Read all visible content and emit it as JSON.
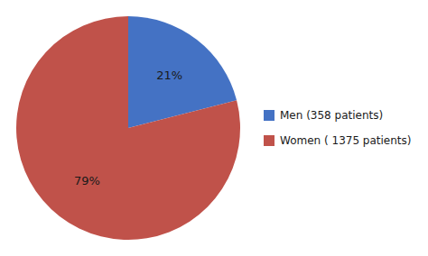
{
  "chart_data": {
    "type": "pie",
    "categories": [
      "Men (358 patients)",
      "Women ( 1375 patients)"
    ],
    "values": [
      21,
      79
    ],
    "value_labels": [
      "21%",
      "79%"
    ],
    "colors": [
      "#4472C4",
      "#C0524A"
    ],
    "data_labels": true,
    "legend": "right"
  }
}
